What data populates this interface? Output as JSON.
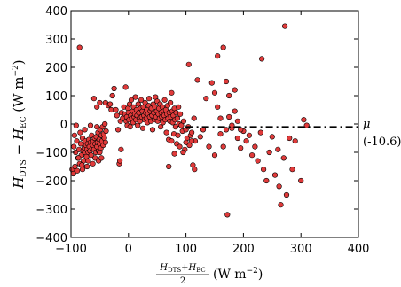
{
  "chart_data": {
    "type": "scatter",
    "xlim": [
      -100,
      400
    ],
    "ylim": [
      -400,
      400
    ],
    "x_ticks": [
      "−100",
      "0",
      "100",
      "200",
      "300",
      "400"
    ],
    "y_ticks": [
      "400",
      "300",
      "200",
      "100",
      "0",
      "−100",
      "−200",
      "−300",
      "−400"
    ],
    "xlabel": {
      "frac_num": "H_DTS + H_EC",
      "frac_num_1": "H",
      "frac_num_1_sub": "DTS",
      "frac_num_plus": "+",
      "frac_num_2": "H",
      "frac_num_2_sub": "EC",
      "frac_den": "2",
      "units": "(W m",
      "units_exp": "−2",
      "units_close": ")"
    },
    "ylabel": {
      "h1": "H",
      "h1_sub": "DTS",
      "minus": " − ",
      "h2": "H",
      "h2_sub": "EC",
      "units": " (W m",
      "units_exp": "−2",
      "units_close": ")"
    },
    "mean_line": {
      "y": -10.6,
      "x_start": 100,
      "x_end": 400,
      "style": "dash-dot",
      "color": "#000000"
    },
    "annotation": {
      "symbol": "μ",
      "value": "(-10.6)"
    },
    "marker_color": "#e03a3a",
    "marker_edge": "#000000",
    "points": [
      [
        -95,
        -80
      ],
      [
        -92,
        -100
      ],
      [
        -90,
        -60
      ],
      [
        -88,
        -120
      ],
      [
        -86,
        -90
      ],
      [
        -85,
        -140
      ],
      [
        -83,
        -70
      ],
      [
        -82,
        -110
      ],
      [
        -80,
        -50
      ],
      [
        -79,
        -95
      ],
      [
        -78,
        -130
      ],
      [
        -77,
        -85
      ],
      [
        -76,
        -100
      ],
      [
        -75,
        -60
      ],
      [
        -74,
        -75
      ],
      [
        -73,
        -115
      ],
      [
        -72,
        -90
      ],
      [
        -71,
        -70
      ],
      [
        -70,
        -100
      ],
      [
        -69,
        -55
      ],
      [
        -68,
        -80
      ],
      [
        -67,
        -95
      ],
      [
        -66,
        -65
      ],
      [
        -65,
        -110
      ],
      [
        -64,
        -40
      ],
      [
        -63,
        -85
      ],
      [
        -62,
        -75
      ],
      [
        -61,
        -60
      ],
      [
        -60,
        -90
      ],
      [
        -59,
        -50
      ],
      [
        -58,
        -70
      ],
      [
        -57,
        -100
      ],
      [
        -56,
        -45
      ],
      [
        -55,
        -80
      ],
      [
        -54,
        -65
      ],
      [
        -53,
        -30
      ],
      [
        -52,
        -95
      ],
      [
        -51,
        -55
      ],
      [
        -50,
        -70
      ],
      [
        -49,
        -20
      ],
      [
        -48,
        -85
      ],
      [
        -47,
        -40
      ],
      [
        -46,
        -60
      ],
      [
        -45,
        -10
      ],
      [
        -44,
        -75
      ],
      [
        -43,
        -35
      ],
      [
        -42,
        -50
      ],
      [
        -41,
        0
      ],
      [
        -40,
        -65
      ],
      [
        -39,
        -25
      ],
      [
        -98,
        -160
      ],
      [
        -96,
        -175
      ],
      [
        -94,
        -40
      ],
      [
        -93,
        -150
      ],
      [
        -91,
        -5
      ],
      [
        -89,
        -165
      ],
      [
        -87,
        -120
      ],
      [
        -84,
        -30
      ],
      [
        -81,
        -145
      ],
      [
        -80,
        -160
      ],
      [
        -76,
        -20
      ],
      [
        -72,
        -150
      ],
      [
        -70,
        -130
      ],
      [
        -66,
        -5
      ],
      [
        -62,
        -140
      ],
      [
        -58,
        -120
      ],
      [
        -55,
        -10
      ],
      [
        -52,
        -130
      ],
      [
        -50,
        -100
      ],
      [
        -47,
        -120
      ],
      [
        -85,
        270
      ],
      [
        -60,
        90
      ],
      [
        -55,
        60
      ],
      [
        -50,
        75
      ],
      [
        -40,
        75
      ],
      [
        -35,
        65
      ],
      [
        -32,
        70
      ],
      [
        -30,
        50
      ],
      [
        -28,
        100
      ],
      [
        -25,
        125
      ],
      [
        -22,
        50
      ],
      [
        -20,
        30
      ],
      [
        -18,
        -20
      ],
      [
        -16,
        -140
      ],
      [
        -15,
        -130
      ],
      [
        -14,
        10
      ],
      [
        -13,
        -90
      ],
      [
        -12,
        40
      ],
      [
        -10,
        20
      ],
      [
        -8,
        60
      ],
      [
        -6,
        35
      ],
      [
        -5,
        130
      ],
      [
        -4,
        10
      ],
      [
        -3,
        25
      ],
      [
        -2,
        -5
      ],
      [
        -1,
        55
      ],
      [
        0,
        40
      ],
      [
        1,
        15
      ],
      [
        2,
        70
      ],
      [
        3,
        -10
      ],
      [
        4,
        30
      ],
      [
        5,
        85
      ],
      [
        6,
        20
      ],
      [
        7,
        45
      ],
      [
        8,
        5
      ],
      [
        9,
        60
      ],
      [
        10,
        25
      ],
      [
        11,
        35
      ],
      [
        12,
        95
      ],
      [
        13,
        15
      ],
      [
        14,
        50
      ],
      [
        15,
        30
      ],
      [
        16,
        -5
      ],
      [
        17,
        70
      ],
      [
        18,
        40
      ],
      [
        19,
        20
      ],
      [
        20,
        10
      ],
      [
        21,
        55
      ],
      [
        22,
        85
      ],
      [
        23,
        25
      ],
      [
        24,
        45
      ],
      [
        25,
        -15
      ],
      [
        26,
        60
      ],
      [
        27,
        30
      ],
      [
        28,
        15
      ],
      [
        29,
        75
      ],
      [
        30,
        40
      ],
      [
        31,
        20
      ],
      [
        32,
        50
      ],
      [
        33,
        5
      ],
      [
        34,
        35
      ],
      [
        35,
        65
      ],
      [
        36,
        90
      ],
      [
        37,
        25
      ],
      [
        38,
        45
      ],
      [
        39,
        10
      ],
      [
        40,
        55
      ],
      [
        41,
        30
      ],
      [
        42,
        -20
      ],
      [
        43,
        70
      ],
      [
        44,
        40
      ],
      [
        45,
        15
      ],
      [
        46,
        60
      ],
      [
        47,
        95
      ],
      [
        48,
        25
      ],
      [
        49,
        45
      ],
      [
        50,
        80
      ],
      [
        51,
        10
      ],
      [
        52,
        35
      ],
      [
        53,
        55
      ],
      [
        54,
        20
      ],
      [
        55,
        70
      ],
      [
        56,
        -10
      ],
      [
        57,
        40
      ],
      [
        58,
        25
      ],
      [
        59,
        60
      ],
      [
        60,
        5
      ],
      [
        61,
        45
      ],
      [
        62,
        30
      ],
      [
        63,
        85
      ],
      [
        64,
        15
      ],
      [
        65,
        50
      ],
      [
        66,
        -30
      ],
      [
        67,
        35
      ],
      [
        68,
        65
      ],
      [
        69,
        20
      ],
      [
        70,
        -55
      ],
      [
        71,
        40
      ],
      [
        72,
        10
      ],
      [
        73,
        75
      ],
      [
        74,
        25
      ],
      [
        75,
        -60
      ],
      [
        76,
        45
      ],
      [
        77,
        5
      ],
      [
        78,
        30
      ],
      [
        79,
        -35
      ],
      [
        80,
        55
      ],
      [
        81,
        15
      ],
      [
        82,
        -10
      ],
      [
        83,
        40
      ],
      [
        84,
        -70
      ],
      [
        85,
        20
      ],
      [
        86,
        -40
      ],
      [
        87,
        60
      ],
      [
        88,
        0
      ],
      [
        89,
        -80
      ],
      [
        90,
        35
      ],
      [
        92,
        -5
      ],
      [
        94,
        -25
      ],
      [
        96,
        10
      ],
      [
        98,
        -90
      ],
      [
        100,
        -20
      ],
      [
        102,
        -50
      ],
      [
        104,
        -10
      ],
      [
        106,
        -75
      ],
      [
        108,
        -40
      ],
      [
        110,
        -30
      ],
      [
        112,
        -145
      ],
      [
        114,
        20
      ],
      [
        116,
        -60
      ],
      [
        70,
        -150
      ],
      [
        75,
        110
      ],
      [
        80,
        -105
      ],
      [
        95,
        -100
      ],
      [
        100,
        -65
      ],
      [
        105,
        210
      ],
      [
        110,
        -60
      ],
      [
        115,
        -160
      ],
      [
        120,
        155
      ],
      [
        125,
        -45
      ],
      [
        130,
        -20
      ],
      [
        135,
        90
      ],
      [
        140,
        -80
      ],
      [
        145,
        145
      ],
      [
        150,
        -110
      ],
      [
        155,
        240
      ],
      [
        160,
        -35
      ],
      [
        165,
        -80
      ],
      [
        170,
        -20
      ],
      [
        172,
        -320
      ],
      [
        175,
        100
      ],
      [
        180,
        -15
      ],
      [
        185,
        45
      ],
      [
        190,
        -50
      ],
      [
        195,
        -85
      ],
      [
        200,
        -25
      ],
      [
        205,
        -60
      ],
      [
        210,
        -40
      ],
      [
        215,
        -110
      ],
      [
        220,
        -80
      ],
      [
        225,
        -130
      ],
      [
        230,
        -30
      ],
      [
        232,
        230
      ],
      [
        235,
        -160
      ],
      [
        240,
        -200
      ],
      [
        245,
        -100
      ],
      [
        250,
        -45
      ],
      [
        255,
        -180
      ],
      [
        260,
        -90
      ],
      [
        262,
        -220
      ],
      [
        265,
        -285
      ],
      [
        270,
        -120
      ],
      [
        272,
        345
      ],
      [
        275,
        -250
      ],
      [
        280,
        -50
      ],
      [
        285,
        -160
      ],
      [
        290,
        -60
      ],
      [
        300,
        -200
      ],
      [
        305,
        15
      ],
      [
        310,
        -5
      ],
      [
        150,
        110
      ],
      [
        155,
        60
      ],
      [
        160,
        20
      ],
      [
        165,
        270
      ],
      [
        170,
        150
      ],
      [
        175,
        25
      ],
      [
        180,
        -5
      ],
      [
        185,
        120
      ],
      [
        190,
        10
      ],
      [
        195,
        -20
      ]
    ]
  }
}
